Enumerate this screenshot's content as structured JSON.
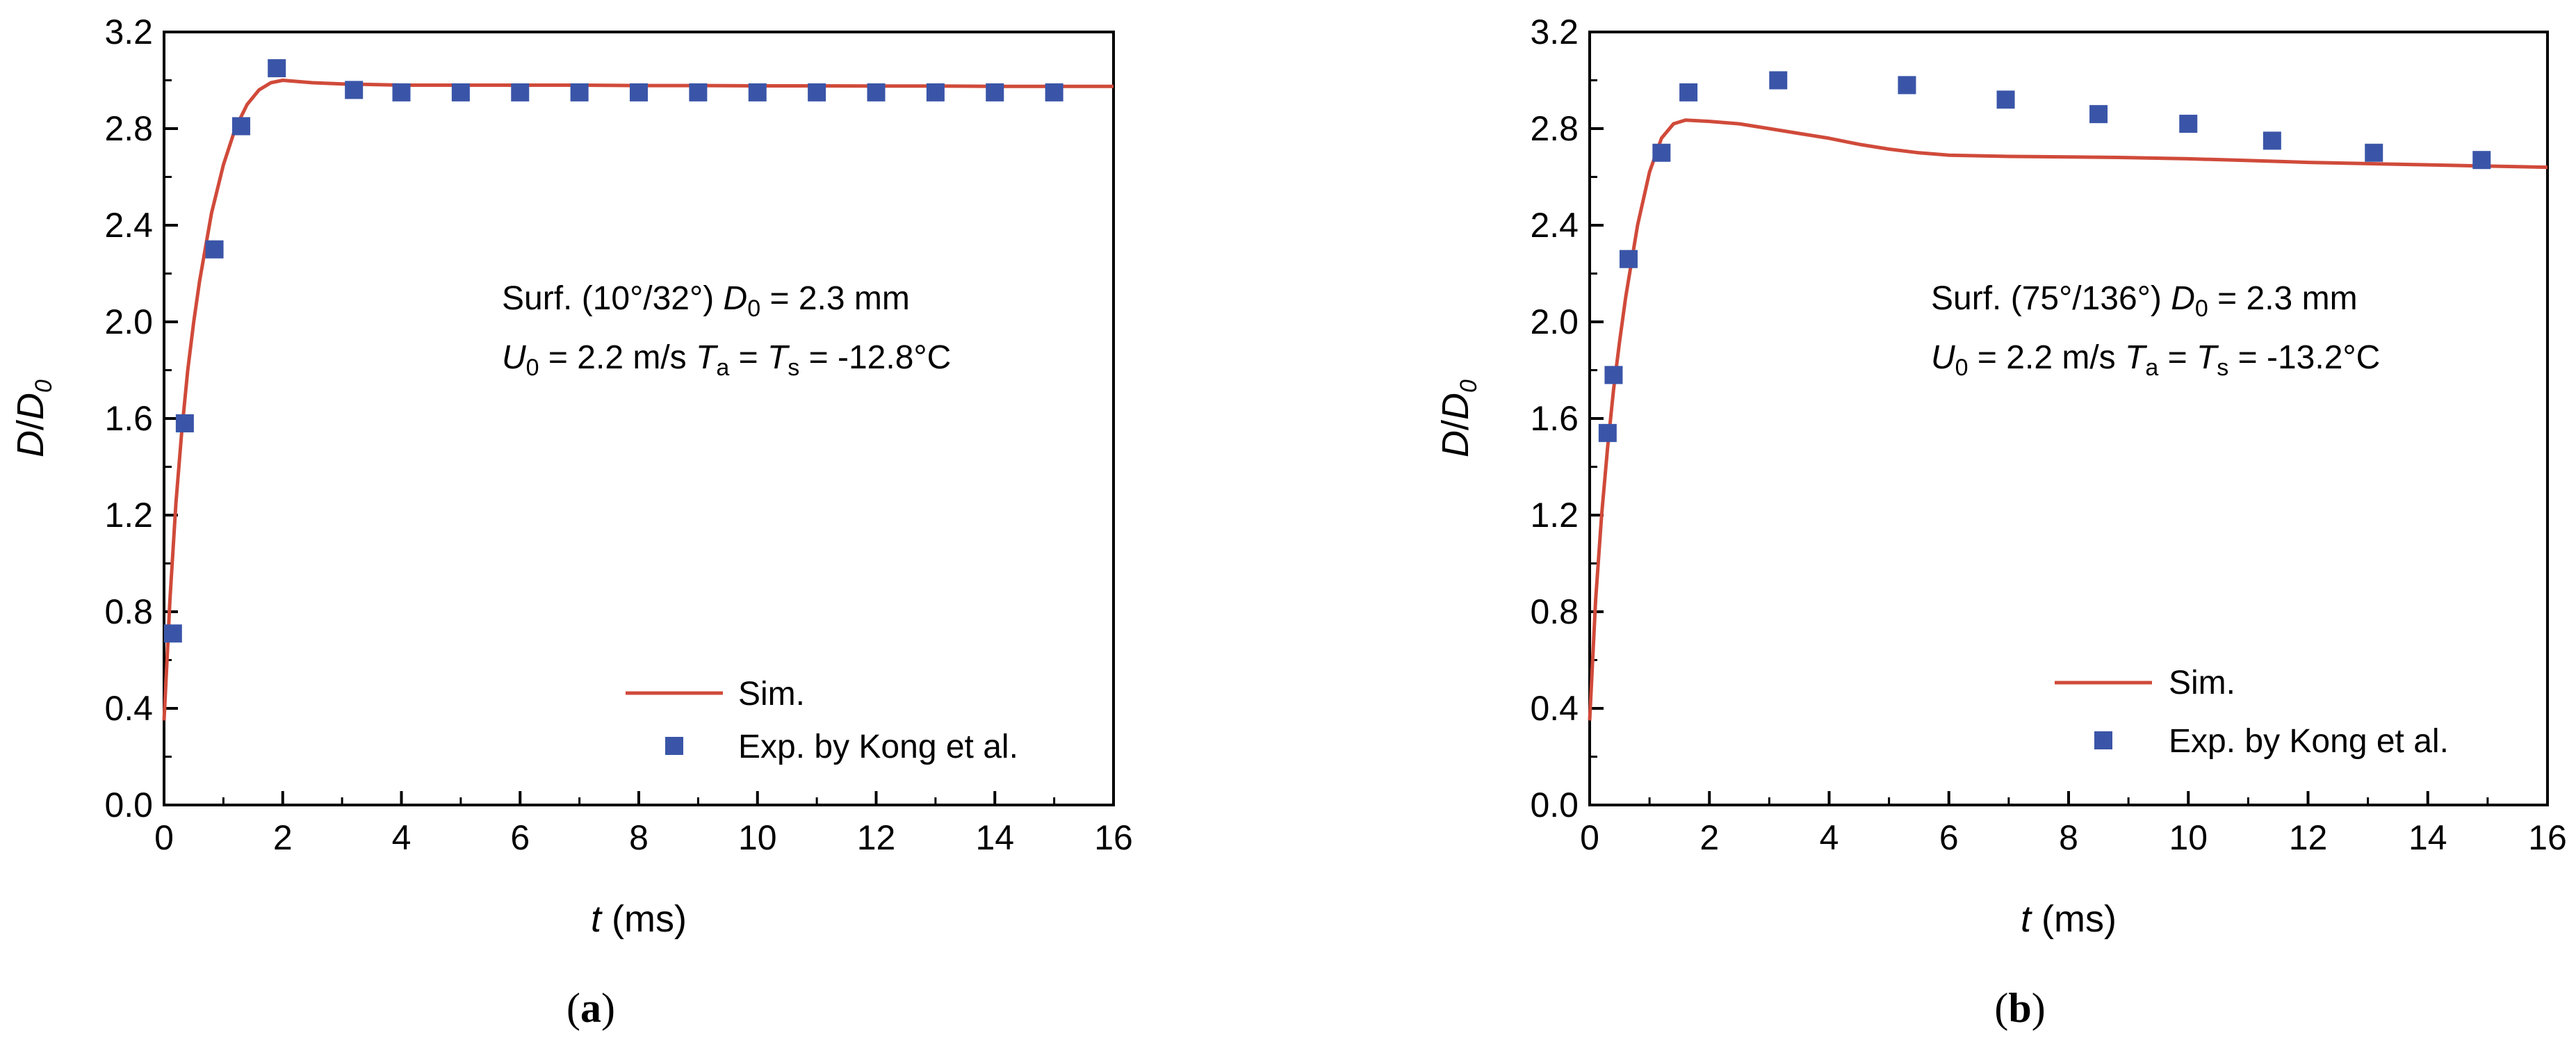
{
  "chart_data": [
    {
      "type": "line",
      "panel_label": "a",
      "xlabel": {
        "var": "t",
        "unit": " (ms)"
      },
      "ylabel": {
        "main": "D",
        "sep": "/",
        "den": "D",
        "den_sub": "0"
      },
      "xlim": [
        0,
        16
      ],
      "ylim": [
        0,
        3.2
      ],
      "xticks": [
        0,
        2,
        4,
        6,
        8,
        10,
        12,
        14,
        16
      ],
      "yticks": [
        0.0,
        0.4,
        0.8,
        1.2,
        1.6,
        2.0,
        2.4,
        2.8,
        3.2
      ],
      "ytick_labels": [
        "0.0",
        "0.4",
        "0.8",
        "1.2",
        "1.6",
        "2.0",
        "2.4",
        "2.8",
        "3.2"
      ],
      "xtick_labels": [
        "0",
        "2",
        "4",
        "6",
        "8",
        "10",
        "12",
        "14",
        "16"
      ],
      "grid": false,
      "legend_position": "bottom-right",
      "annotation": {
        "line1": {
          "pre": "Surf. (10°/32°) ",
          "v1": "D",
          "v1_sub": "0",
          "rest": " = 2.3 mm"
        },
        "line2": {
          "v1": "U",
          "v1_sub": "0",
          "mid1": " = 2.2 m/s ",
          "v2": "T",
          "v2_sub": "a",
          "mid2": " = ",
          "v3": "T",
          "v3_sub": "s",
          "rest": " = -12.8°C"
        }
      },
      "series": [
        {
          "name": "Sim.",
          "kind": "line",
          "color": "#d04a3a",
          "x": [
            0,
            0.05,
            0.1,
            0.2,
            0.3,
            0.4,
            0.5,
            0.6,
            0.8,
            1.0,
            1.2,
            1.4,
            1.6,
            1.8,
            2.0,
            2.5,
            3,
            4,
            5,
            6,
            7,
            8,
            9,
            10,
            11,
            12,
            13,
            14,
            15,
            16
          ],
          "y": [
            0.35,
            0.6,
            0.85,
            1.25,
            1.55,
            1.8,
            2.0,
            2.17,
            2.45,
            2.65,
            2.8,
            2.9,
            2.96,
            2.99,
            3.0,
            2.99,
            2.985,
            2.98,
            2.98,
            2.98,
            2.98,
            2.978,
            2.978,
            2.977,
            2.977,
            2.976,
            2.976,
            2.975,
            2.975,
            2.975
          ]
        },
        {
          "name": "Exp. by Kong et al.",
          "kind": "scatter",
          "color": "#3a55a8",
          "x": [
            0.15,
            0.35,
            0.85,
            1.3,
            1.9,
            3.2,
            4,
            5,
            6,
            7,
            8,
            9,
            10,
            11,
            12,
            13,
            14,
            15
          ],
          "y": [
            0.71,
            1.58,
            2.3,
            2.81,
            3.05,
            2.96,
            2.95,
            2.95,
            2.95,
            2.95,
            2.95,
            2.95,
            2.95,
            2.95,
            2.95,
            2.95,
            2.95,
            2.95
          ]
        }
      ]
    },
    {
      "type": "line",
      "panel_label": "b",
      "xlabel": {
        "var": "t",
        "unit": " (ms)"
      },
      "ylabel": {
        "main": "D",
        "sep": "/",
        "den": "D",
        "den_sub": "0"
      },
      "xlim": [
        0,
        16
      ],
      "ylim": [
        0,
        3.2
      ],
      "xticks": [
        0,
        2,
        4,
        6,
        8,
        10,
        12,
        14,
        16
      ],
      "yticks": [
        0.0,
        0.4,
        0.8,
        1.2,
        1.6,
        2.0,
        2.4,
        2.8,
        3.2
      ],
      "ytick_labels": [
        "0.0",
        "0.4",
        "0.8",
        "1.2",
        "1.6",
        "2.0",
        "2.4",
        "2.8",
        "3.2"
      ],
      "xtick_labels": [
        "0",
        "2",
        "4",
        "6",
        "8",
        "10",
        "12",
        "14",
        "16"
      ],
      "grid": false,
      "legend_position": "bottom-right",
      "annotation": {
        "line1": {
          "pre": "Surf. (75°/136°) ",
          "v1": "D",
          "v1_sub": "0",
          "rest": " = 2.3 mm"
        },
        "line2": {
          "v1": "U",
          "v1_sub": "0",
          "mid1": " = 2.2 m/s ",
          "v2": "T",
          "v2_sub": "a",
          "mid2": " = ",
          "v3": "T",
          "v3_sub": "s",
          "rest": " = -13.2°C"
        }
      },
      "series": [
        {
          "name": "Sim.",
          "kind": "line",
          "color": "#d04a3a",
          "x": [
            0,
            0.05,
            0.1,
            0.2,
            0.3,
            0.4,
            0.5,
            0.6,
            0.8,
            1.0,
            1.2,
            1.4,
            1.6,
            2.0,
            2.5,
            3,
            3.5,
            4,
            4.5,
            5,
            5.5,
            6,
            7,
            8,
            9,
            10,
            11,
            12,
            13,
            14,
            15,
            16
          ],
          "y": [
            0.35,
            0.6,
            0.85,
            1.2,
            1.48,
            1.72,
            1.92,
            2.1,
            2.4,
            2.62,
            2.76,
            2.82,
            2.835,
            2.83,
            2.82,
            2.8,
            2.78,
            2.76,
            2.735,
            2.715,
            2.7,
            2.69,
            2.685,
            2.683,
            2.68,
            2.675,
            2.668,
            2.66,
            2.655,
            2.65,
            2.645,
            2.64
          ]
        },
        {
          "name": "Exp. by Kong et al.",
          "kind": "scatter",
          "color": "#3a55a8",
          "x": [
            0.3,
            0.4,
            0.65,
            1.2,
            1.65,
            3.15,
            5.3,
            6.95,
            8.5,
            10,
            11.4,
            13.1,
            14.9
          ],
          "y": [
            1.54,
            1.78,
            2.26,
            2.7,
            2.95,
            3.0,
            2.98,
            2.92,
            2.86,
            2.82,
            2.75,
            2.7,
            2.67
          ]
        }
      ]
    }
  ]
}
